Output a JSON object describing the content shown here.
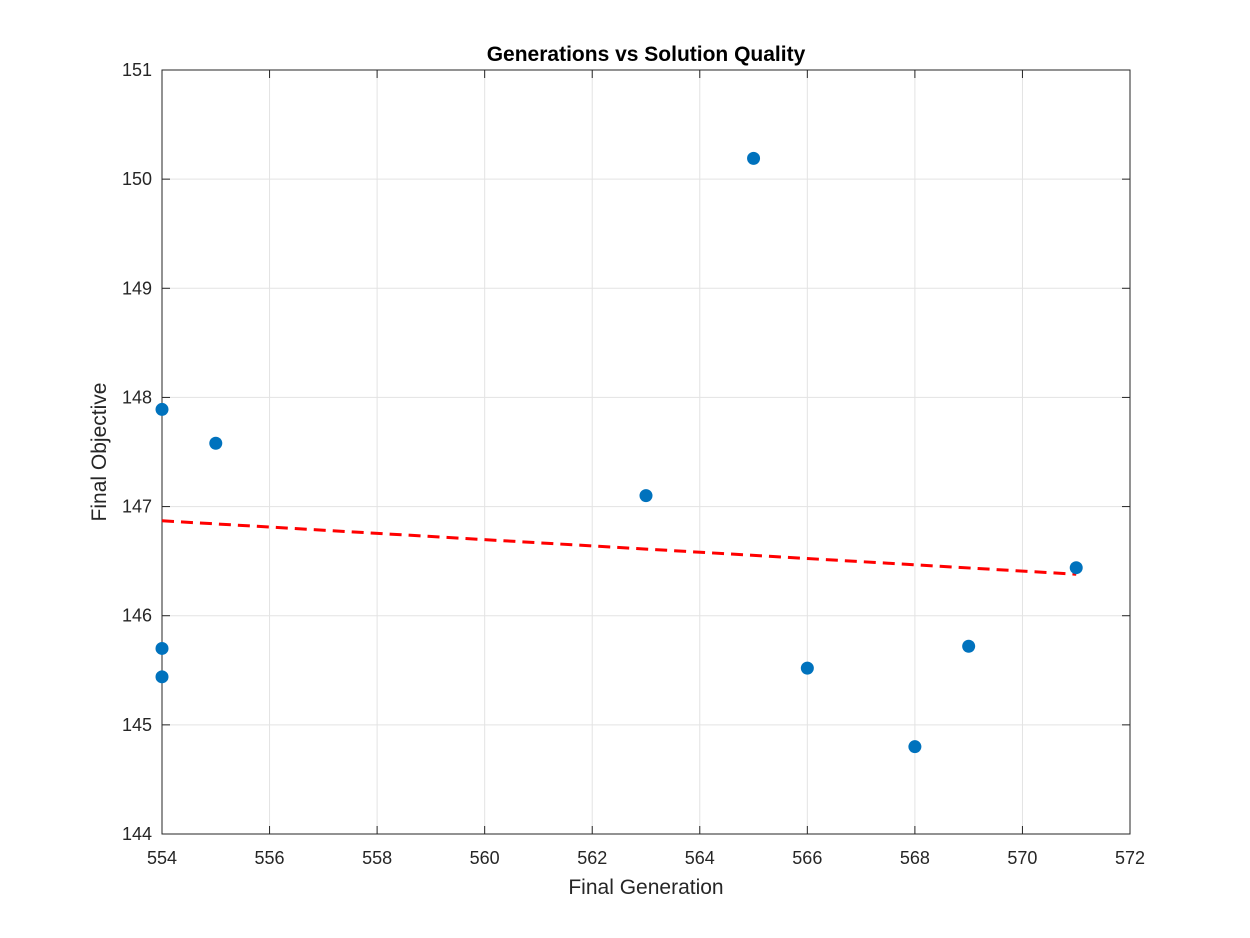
{
  "chart_data": {
    "type": "scatter",
    "title": "Generations vs Solution Quality",
    "xlabel": "Final Generation",
    "ylabel": "Final Objective",
    "xlim": [
      554,
      572
    ],
    "ylim": [
      144,
      151
    ],
    "xticks": [
      "554",
      "556",
      "558",
      "560",
      "562",
      "564",
      "566",
      "568",
      "570",
      "572"
    ],
    "yticks": [
      "144",
      "145",
      "146",
      "147",
      "148",
      "149",
      "150",
      "151"
    ],
    "grid": true,
    "legend": "none",
    "series": [
      {
        "type": "scatter",
        "color": "#0072BD",
        "points": [
          {
            "x": 554,
            "y": 147.89
          },
          {
            "x": 554,
            "y": 145.7
          },
          {
            "x": 554,
            "y": 145.44
          },
          {
            "x": 555,
            "y": 147.58
          },
          {
            "x": 563,
            "y": 147.1
          },
          {
            "x": 565,
            "y": 150.19
          },
          {
            "x": 566,
            "y": 145.52
          },
          {
            "x": 568,
            "y": 144.8
          },
          {
            "x": 569,
            "y": 145.72
          },
          {
            "x": 571,
            "y": 146.44
          }
        ]
      },
      {
        "type": "line",
        "style": "dashed",
        "color": "#FF0000",
        "points": [
          {
            "x": 554,
            "y": 146.87
          },
          {
            "x": 571,
            "y": 146.38
          }
        ]
      }
    ]
  }
}
